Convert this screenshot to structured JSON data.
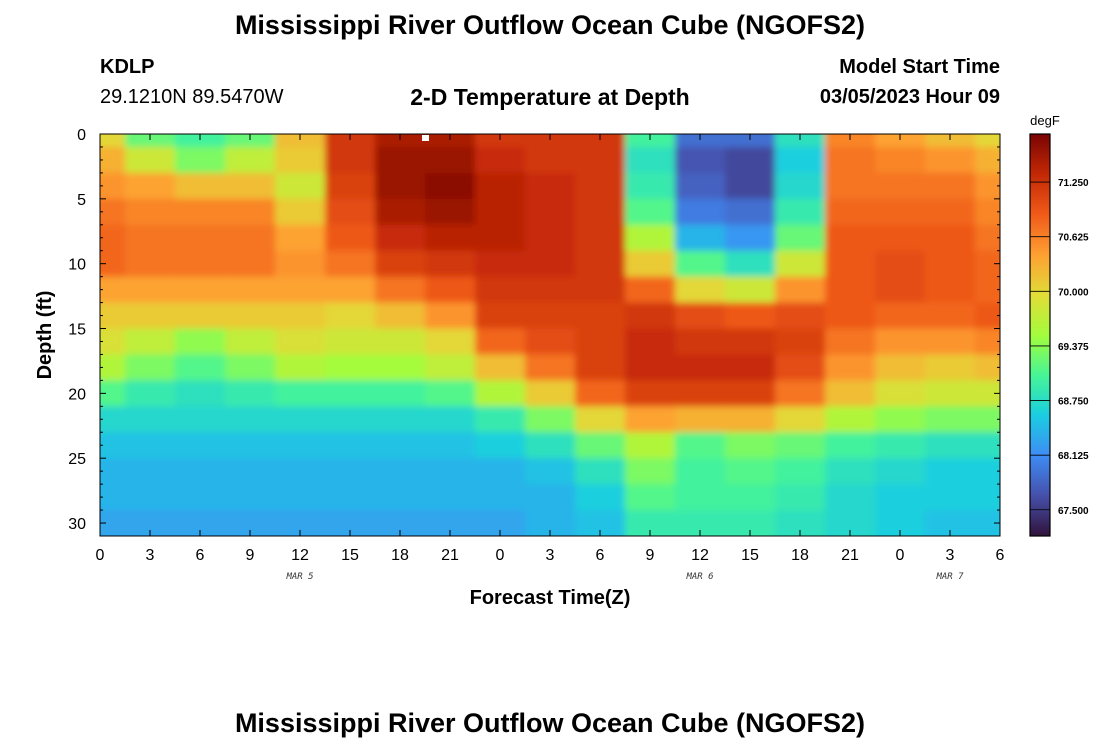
{
  "title": "Mississippi River Outflow Ocean Cube (NGOFS2)",
  "station": {
    "id": "KDLP",
    "coords": "29.1210N  89.5470W"
  },
  "plot_title": "2-D Temperature at Depth",
  "model_start": {
    "label": "Model Start Time",
    "value": "03/05/2023 Hour 09"
  },
  "footer_title": "Mississippi River Outflow Ocean Cube (NGOFS2)",
  "chart_data": {
    "type": "heatmap",
    "xlabel": "Forecast Time(Z)",
    "ylabel": "Depth (ft)",
    "x_hours_range": [
      0,
      54
    ],
    "y_depth_range": [
      0,
      31
    ],
    "y_reversed": true,
    "x_tick_labels": [
      "0",
      "3",
      "6",
      "9",
      "12",
      "15",
      "18",
      "21",
      "0",
      "3",
      "6",
      "9",
      "12",
      "15",
      "18",
      "21",
      "0",
      "3",
      "6"
    ],
    "y_tick_labels": [
      "0",
      "5",
      "10",
      "15",
      "20",
      "25",
      "30"
    ],
    "y_tick_values": [
      0,
      5,
      10,
      15,
      20,
      25,
      30
    ],
    "date_labels": [
      {
        "text": "MAR 5",
        "hour": 12
      },
      {
        "text": "MAR 6",
        "hour": 36
      },
      {
        "text": "MAR 7",
        "hour": 51
      }
    ],
    "colorbar": {
      "unit": "degF",
      "min": 67.2,
      "max": 71.8,
      "ticks": [
        "71.250",
        "70.625",
        "70.000",
        "69.375",
        "68.750",
        "68.125",
        "67.500"
      ],
      "tick_values": [
        71.25,
        70.625,
        70.0,
        69.375,
        68.75,
        68.125,
        67.5
      ]
    },
    "grid_x_hours": [
      0,
      3,
      6,
      9,
      12,
      15,
      18,
      21,
      24,
      27,
      30,
      33,
      36,
      39,
      42,
      45,
      48,
      51,
      54
    ],
    "grid_y_depth": [
      0,
      2,
      4,
      6,
      8,
      10,
      12,
      14,
      16,
      18,
      20,
      22,
      24,
      26,
      28,
      30
    ],
    "values": [
      [
        70.0,
        69.2,
        69.0,
        69.2,
        70.2,
        71.2,
        71.5,
        71.5,
        71.2,
        71.2,
        71.2,
        69.0,
        67.9,
        67.9,
        68.8,
        70.6,
        70.4,
        70.2,
        70.0
      ],
      [
        70.3,
        69.8,
        69.3,
        69.7,
        70.1,
        71.2,
        71.6,
        71.6,
        71.3,
        71.2,
        71.2,
        68.8,
        67.7,
        67.6,
        68.6,
        70.7,
        70.6,
        70.5,
        70.3
      ],
      [
        70.5,
        70.4,
        70.2,
        70.2,
        69.8,
        71.1,
        71.6,
        71.7,
        71.4,
        71.3,
        71.2,
        68.9,
        67.8,
        67.6,
        68.7,
        70.7,
        70.7,
        70.7,
        70.5
      ],
      [
        70.7,
        70.6,
        70.6,
        70.6,
        70.1,
        71.0,
        71.5,
        71.6,
        71.4,
        71.3,
        71.2,
        69.1,
        68.0,
        67.9,
        68.9,
        70.8,
        70.8,
        70.8,
        70.6
      ],
      [
        70.8,
        70.7,
        70.7,
        70.7,
        70.4,
        70.9,
        71.3,
        71.4,
        71.4,
        71.3,
        71.2,
        69.6,
        68.4,
        68.2,
        69.2,
        70.9,
        70.9,
        70.9,
        70.7
      ],
      [
        70.8,
        70.7,
        70.7,
        70.7,
        70.5,
        70.7,
        71.1,
        71.2,
        71.3,
        71.3,
        71.2,
        70.1,
        69.1,
        68.8,
        69.8,
        70.9,
        71.0,
        70.9,
        70.8
      ],
      [
        70.4,
        70.4,
        70.4,
        70.4,
        70.4,
        70.4,
        70.7,
        70.9,
        71.2,
        71.2,
        71.2,
        70.8,
        70.0,
        69.8,
        70.5,
        70.9,
        71.0,
        70.9,
        70.8
      ],
      [
        70.1,
        70.1,
        70.1,
        70.1,
        70.1,
        70.0,
        70.2,
        70.5,
        71.1,
        71.1,
        71.1,
        71.2,
        71.0,
        70.9,
        71.0,
        70.9,
        70.8,
        70.8,
        70.9
      ],
      [
        69.9,
        69.7,
        69.4,
        69.7,
        69.9,
        69.8,
        69.8,
        70.0,
        70.8,
        71.0,
        71.1,
        71.3,
        71.2,
        71.2,
        71.1,
        70.7,
        70.5,
        70.5,
        70.6
      ],
      [
        69.6,
        69.3,
        69.1,
        69.3,
        69.6,
        69.5,
        69.5,
        69.7,
        70.2,
        70.7,
        71.1,
        71.3,
        71.3,
        71.3,
        71.0,
        70.5,
        70.2,
        70.1,
        70.2
      ],
      [
        69.1,
        68.9,
        68.8,
        68.9,
        69.0,
        69.0,
        69.0,
        69.1,
        69.6,
        70.1,
        70.8,
        71.1,
        71.1,
        71.1,
        70.7,
        70.2,
        69.9,
        69.8,
        69.8
      ],
      [
        68.7,
        68.7,
        68.7,
        68.7,
        68.7,
        68.7,
        68.7,
        68.7,
        68.9,
        69.3,
        70.0,
        70.4,
        70.3,
        70.3,
        70.0,
        69.6,
        69.4,
        69.3,
        69.3
      ],
      [
        68.5,
        68.5,
        68.5,
        68.5,
        68.5,
        68.5,
        68.5,
        68.5,
        68.6,
        68.8,
        69.2,
        69.6,
        69.1,
        69.3,
        69.2,
        69.0,
        68.9,
        68.8,
        68.8
      ],
      [
        68.4,
        68.4,
        68.4,
        68.4,
        68.4,
        68.4,
        68.4,
        68.4,
        68.4,
        68.5,
        68.8,
        69.3,
        69.0,
        69.1,
        69.0,
        68.8,
        68.7,
        68.6,
        68.6
      ],
      [
        68.4,
        68.4,
        68.4,
        68.4,
        68.4,
        68.4,
        68.4,
        68.4,
        68.4,
        68.4,
        68.6,
        69.1,
        69.0,
        69.0,
        68.9,
        68.7,
        68.6,
        68.6,
        68.6
      ],
      [
        68.3,
        68.3,
        68.3,
        68.3,
        68.3,
        68.3,
        68.3,
        68.3,
        68.3,
        68.4,
        68.5,
        68.9,
        68.9,
        68.9,
        68.8,
        68.7,
        68.6,
        68.5,
        68.5
      ]
    ]
  }
}
